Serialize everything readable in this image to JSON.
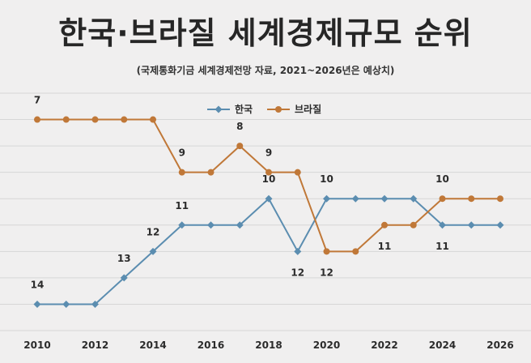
{
  "header": {
    "title": "한국·브라질 세계경제규모 순위",
    "subtitle": "(국제통화기금 세계경제전망 자료, 2021~2026년은 예상치)"
  },
  "chart_data": {
    "type": "line",
    "title": "한국·브라질 세계경제규모 순위",
    "subtitle": "(국제통화기금 세계경제전망 자료, 2021~2026년은 예상치)",
    "x": [
      2010,
      2011,
      2012,
      2013,
      2014,
      2015,
      2016,
      2017,
      2018,
      2019,
      2020,
      2021,
      2022,
      2023,
      2024,
      2025,
      2026
    ],
    "x_ticks": [
      "2010",
      "2012",
      "2014",
      "2016",
      "2018",
      "2020",
      "2022",
      "2024",
      "2026"
    ],
    "y_inverted": true,
    "ylim": [
      6,
      15
    ],
    "grid": true,
    "legend_position": "top-center",
    "series": [
      {
        "name": "한국",
        "color": "#5b8db0",
        "marker": "diamond",
        "values": [
          14,
          14,
          14,
          13,
          12,
          11,
          11,
          11,
          10,
          12,
          10,
          10,
          10,
          10,
          11,
          11,
          11
        ],
        "labels": [
          {
            "index": 0,
            "text": "14",
            "pos": "above"
          },
          {
            "index": 3,
            "text": "13",
            "pos": "above"
          },
          {
            "index": 4,
            "text": "12",
            "pos": "above"
          },
          {
            "index": 5,
            "text": "11",
            "pos": "above"
          },
          {
            "index": 8,
            "text": "10",
            "pos": "above"
          },
          {
            "index": 9,
            "text": "12",
            "pos": "below"
          },
          {
            "index": 10,
            "text": "10",
            "pos": "above"
          },
          {
            "index": 14,
            "text": "11",
            "pos": "below"
          }
        ]
      },
      {
        "name": "브라질",
        "color": "#c07838",
        "marker": "circle",
        "values": [
          7,
          7,
          7,
          7,
          7,
          9,
          9,
          8,
          9,
          9,
          12,
          12,
          11,
          11,
          10,
          10,
          10
        ],
        "labels": [
          {
            "index": 0,
            "text": "7",
            "pos": "above"
          },
          {
            "index": 5,
            "text": "9",
            "pos": "above"
          },
          {
            "index": 7,
            "text": "8",
            "pos": "above"
          },
          {
            "index": 8,
            "text": "9",
            "pos": "above"
          },
          {
            "index": 10,
            "text": "12",
            "pos": "below"
          },
          {
            "index": 12,
            "text": "11",
            "pos": "below"
          },
          {
            "index": 14,
            "text": "10",
            "pos": "above"
          }
        ]
      }
    ]
  }
}
